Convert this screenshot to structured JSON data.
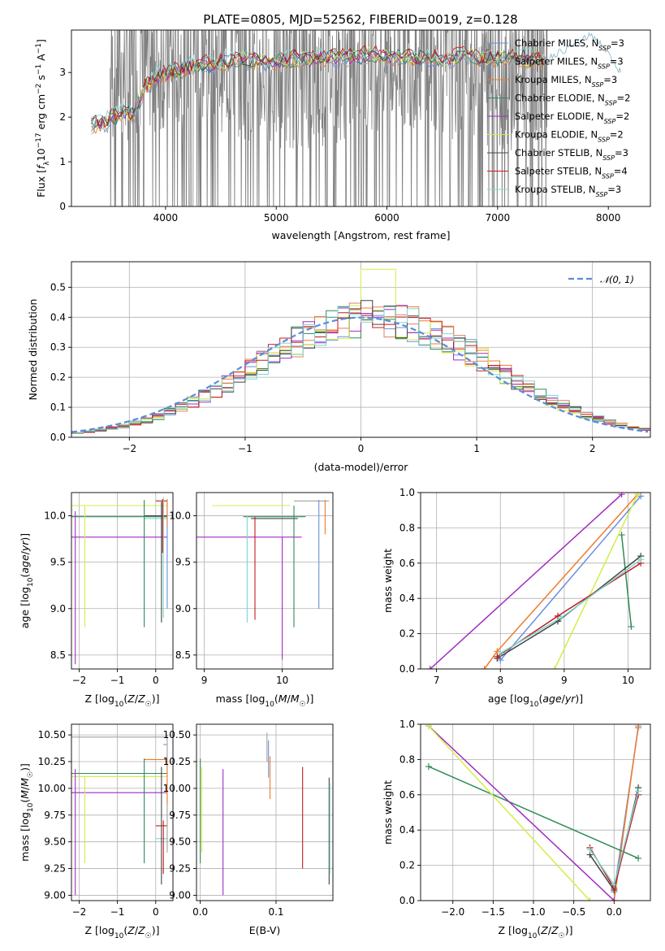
{
  "figure": {
    "title": "PLATE=0805, MJD=52562, FIBERID=0019, z=0.128"
  },
  "colors": {
    "chabrier_miles": "#6a8fe0",
    "salpeter_miles": "#a0a0a0",
    "kroupa_miles": "#ef7b2d",
    "chabrier_elodie": "#2e8b57",
    "salpeter_elodie": "#a02cc0",
    "kroupa_elodie": "#d4ec4a",
    "chabrier_stelib": "#444444",
    "salpeter_stelib": "#c8181e",
    "kroupa_stelib": "#7ad8cf",
    "data_gray": "#808080",
    "gaussian": "#5b8bd8"
  },
  "legend": {
    "spectrum": [
      {
        "text": "Chabrier MILES, N",
        "sub": "SSP",
        "tail": "=3",
        "color": "#6a8fe0"
      },
      {
        "text": "Salpeter MILES, N",
        "sub": "SSP",
        "tail": "=3",
        "color": "#a0a0a0"
      },
      {
        "text": "Kroupa MILES, N",
        "sub": "SSP",
        "tail": "=3",
        "color": "#ef7b2d"
      },
      {
        "text": "Chabrier ELODIE, N",
        "sub": "SSP",
        "tail": "=2",
        "color": "#2e8b57"
      },
      {
        "text": "Salpeter ELODIE, N",
        "sub": "SSP",
        "tail": "=2",
        "color": "#a02cc0"
      },
      {
        "text": "Kroupa ELODIE, N",
        "sub": "SSP",
        "tail": "=2",
        "color": "#d4ec4a"
      },
      {
        "text": "Chabrier STELIB, N",
        "sub": "SSP",
        "tail": "=3",
        "color": "#444444"
      },
      {
        "text": "Salpeter STELIB, N",
        "sub": "SSP",
        "tail": "=4",
        "color": "#c8181e"
      },
      {
        "text": "Kroupa STELIB, N",
        "sub": "SSP",
        "tail": "=3",
        "color": "#7ad8cf"
      }
    ],
    "histogram": {
      "text": "𝒩(0, 1)",
      "color": "#5b8bd8"
    }
  },
  "chart_data": [
    {
      "id": "spectrum",
      "type": "line",
      "xlabel": "wavelength [Angstrom, rest frame]",
      "ylabel": "Flux [f_λ 10^-17 erg cm^-2 s^-1 A^-1]",
      "xlim": [
        3150,
        8380
      ],
      "ylim": [
        0,
        3.95
      ],
      "xticks": [
        4000,
        5000,
        6000,
        7000,
        8000
      ],
      "yticks": [
        0,
        1,
        2,
        3
      ],
      "data_range": [
        3500,
        7450
      ],
      "model_continuum": {
        "x": [
          3330,
          3450,
          3600,
          3700,
          3800,
          3900,
          4000,
          4100,
          4200,
          4300,
          4500,
          4700,
          4900,
          5100,
          5300,
          5500,
          5700,
          5900,
          6100,
          6300,
          6500,
          6700,
          6900,
          7100,
          7300,
          7440
        ],
        "y": [
          1.85,
          1.85,
          2.1,
          2.0,
          2.6,
          2.9,
          2.95,
          3.05,
          3.1,
          3.15,
          3.2,
          3.3,
          3.25,
          3.3,
          3.3,
          3.35,
          3.35,
          3.4,
          3.35,
          3.3,
          3.3,
          3.35,
          3.3,
          3.35,
          3.3,
          3.3
        ]
      },
      "stelib_extension": {
        "x": [
          7440,
          7550,
          7650,
          7750,
          7850,
          7950,
          8050,
          8120
        ],
        "y": [
          3.3,
          3.45,
          3.55,
          3.7,
          3.85,
          3.6,
          3.2,
          3.0
        ]
      }
    },
    {
      "id": "residual-histogram",
      "type": "histogram",
      "xlabel": "(data-model)/error",
      "ylabel": "Normed distribution",
      "xlim": [
        -2.5,
        2.5
      ],
      "ylim": [
        0,
        0.585
      ],
      "xticks": [
        -2,
        -1,
        0,
        1,
        2
      ],
      "yticks": [
        0.0,
        0.1,
        0.2,
        0.3,
        0.4,
        0.5
      ],
      "bin_width": 0.1,
      "reference": {
        "name": "𝒩(0, 1)",
        "mean": 0,
        "sigma": 1
      },
      "series_shape_peak": 0.56
    },
    {
      "id": "age-vs-Z",
      "type": "scatter",
      "xlabel": "Z [log10(Z/Z☉)]",
      "ylabel": "age [log10(age/yr)]",
      "xlim": [
        -2.2,
        0.45
      ],
      "ylim": [
        8.35,
        10.25
      ],
      "xticks": [
        -2,
        -1,
        0
      ],
      "yticks": [
        8.5,
        9.0,
        9.5,
        10.0
      ]
    },
    {
      "id": "age-vs-mass",
      "type": "scatter",
      "xlabel": "mass [log10(M/M☉)]",
      "ylabel": "",
      "xlim": [
        8.9,
        10.65
      ],
      "ylim": [
        8.35,
        10.25
      ],
      "xticks": [
        9,
        10
      ],
      "yticks": [
        8.5,
        9.0,
        9.5,
        10.0
      ]
    },
    {
      "id": "weight-vs-age",
      "type": "line",
      "xlabel": "age [log10(age/yr)]",
      "ylabel": "mass weight",
      "xlim": [
        6.75,
        10.35
      ],
      "ylim": [
        0,
        1.0
      ],
      "xticks": [
        7,
        8,
        9,
        10
      ],
      "yticks": [
        0.0,
        0.2,
        0.4,
        0.6,
        0.8,
        1.0
      ],
      "series": [
        {
          "name": "Chabrier MILES",
          "x": [
            8.0,
            10.2
          ],
          "y": [
            0.05,
            0.98
          ],
          "color": "#6a8fe0"
        },
        {
          "name": "Kroupa MILES",
          "x": [
            7.75,
            7.95,
            10.15
          ],
          "y": [
            0.0,
            0.1,
            0.99
          ],
          "color": "#ef7b2d"
        },
        {
          "name": "Chabrier ELODIE",
          "x": [
            9.9,
            10.05
          ],
          "y": [
            0.76,
            0.24
          ],
          "color": "#2e8b57"
        },
        {
          "name": "Salpeter ELODIE",
          "x": [
            6.9,
            9.9
          ],
          "y": [
            0.0,
            0.99
          ],
          "color": "#a02cc0"
        },
        {
          "name": "Kroupa ELODIE",
          "x": [
            8.85,
            10.15
          ],
          "y": [
            0.0,
            0.99
          ],
          "color": "#d4ec4a"
        },
        {
          "name": "Chabrier STELIB",
          "x": [
            7.95,
            8.9,
            10.2
          ],
          "y": [
            0.06,
            0.27,
            0.64
          ],
          "color": "#444444"
        },
        {
          "name": "Salpeter STELIB",
          "x": [
            7.95,
            8.9,
            10.2
          ],
          "y": [
            0.07,
            0.3,
            0.6
          ],
          "color": "#c8181e"
        },
        {
          "name": "Kroupa STELIB",
          "x": [
            8.0,
            8.95,
            10.2
          ],
          "y": [
            0.09,
            0.29,
            0.62
          ],
          "color": "#7ad8cf"
        }
      ]
    },
    {
      "id": "mass-vs-Z",
      "type": "scatter",
      "xlabel": "Z [log10(Z/Z☉)]",
      "ylabel": "mass [log10(M/M☉)]",
      "xlim": [
        -2.2,
        0.45
      ],
      "ylim": [
        8.95,
        10.6
      ],
      "xticks": [
        -2,
        -1,
        0
      ],
      "yticks": [
        9.0,
        9.25,
        9.5,
        9.75,
        10.0,
        10.25,
        10.5
      ]
    },
    {
      "id": "mass-vs-EBV",
      "type": "scatter",
      "xlabel": "E(B-V)",
      "ylabel": "",
      "xlim": [
        -0.005,
        0.175
      ],
      "ylim": [
        8.95,
        10.6
      ],
      "xticks": [
        0.0,
        0.1
      ],
      "yticks": [
        9.0,
        9.25,
        9.5,
        9.75,
        10.0,
        10.25,
        10.5
      ]
    },
    {
      "id": "weight-vs-Z",
      "type": "line",
      "xlabel": "Z [log10(Z/Z☉)]",
      "ylabel": "mass weight",
      "xlim": [
        -2.4,
        0.45
      ],
      "ylim": [
        0,
        1.0
      ],
      "xticks": [
        -2.0,
        -1.5,
        -1.0,
        -0.5,
        0.0
      ],
      "yticks": [
        0.0,
        0.2,
        0.4,
        0.6,
        0.8,
        1.0
      ],
      "series": [
        {
          "name": "Chabrier MILES",
          "x": [
            0.0,
            0.3
          ],
          "y": [
            0.05,
            0.98
          ],
          "color": "#6a8fe0"
        },
        {
          "name": "Kroupa MILES",
          "x": [
            0.0,
            0.3
          ],
          "y": [
            0.0,
            0.99
          ],
          "color": "#ef7b2d"
        },
        {
          "name": "Chabrier ELODIE",
          "x": [
            -2.3,
            0.3
          ],
          "y": [
            0.76,
            0.24
          ],
          "color": "#2e8b57"
        },
        {
          "name": "Salpeter ELODIE",
          "x": [
            -2.3,
            0.0
          ],
          "y": [
            0.99,
            0.0
          ],
          "color": "#a02cc0"
        },
        {
          "name": "Kroupa ELODIE",
          "x": [
            -2.3,
            -0.3
          ],
          "y": [
            0.99,
            0.0
          ],
          "color": "#d4ec4a"
        },
        {
          "name": "Chabrier STELIB",
          "x": [
            -0.3,
            0.0,
            0.3
          ],
          "y": [
            0.26,
            0.06,
            0.64
          ],
          "color": "#444444"
        },
        {
          "name": "Salpeter STELIB",
          "x": [
            -0.3,
            0.0,
            0.3
          ],
          "y": [
            0.3,
            0.07,
            0.6
          ],
          "color": "#c8181e"
        },
        {
          "name": "Kroupa STELIB",
          "x": [
            -0.3,
            0.0,
            0.3
          ],
          "y": [
            0.29,
            0.09,
            0.62
          ],
          "color": "#7ad8cf"
        }
      ]
    }
  ]
}
